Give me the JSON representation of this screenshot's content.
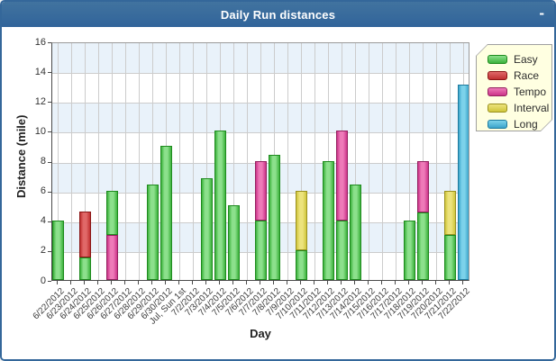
{
  "window": {
    "title": "Daily Run distances",
    "minimize_label": "-"
  },
  "colors": {
    "titlebar": "#34679a",
    "window_border": "#34679a",
    "plot_band": "#e9f2fa",
    "gridline": "#cccccc",
    "legend_bg": "#ffffe1",
    "legend_border": "#9f9f9f"
  },
  "chart_data": {
    "type": "bar",
    "title": "Daily Run distances",
    "xlabel": "Day",
    "ylabel": "Distance (mile)",
    "ylim": [
      0,
      16
    ],
    "yticks": [
      0,
      2,
      4,
      6,
      8,
      10,
      12,
      14,
      16
    ],
    "grid": true,
    "legend_position": "top-right",
    "categories": [
      "6/22/2012",
      "6/23/2012",
      "6/24/2012",
      "6/25/2012",
      "6/26/2012",
      "6/27/2012",
      "6/28/2012",
      "6/29/2012",
      "6/30/2012",
      "Jul, Sun 1st",
      "7/2/2012",
      "7/3/2012",
      "7/4/2012",
      "7/5/2012",
      "7/6/2012",
      "7/7/2012",
      "7/8/2012",
      "7/9/2012",
      "7/10/2012",
      "7/11/2012",
      "7/12/2012",
      "7/13/2012",
      "7/14/2012",
      "7/15/2012",
      "7/16/2012",
      "7/17/2012",
      "7/18/2012",
      "7/19/2012",
      "7/20/2012",
      "7/21/2012",
      "7/22/2012"
    ],
    "legend": [
      {
        "label": "Easy",
        "fill_light": "#8ce08c",
        "fill_dark": "#3cb23c",
        "border": "#1e8a1e"
      },
      {
        "label": "Race",
        "fill_light": "#e06868",
        "fill_dark": "#c03030",
        "border": "#8a1616"
      },
      {
        "label": "Tempo",
        "fill_light": "#ee7ab8",
        "fill_dark": "#cc3389",
        "border": "#93215f"
      },
      {
        "label": "Interval",
        "fill_light": "#ece37c",
        "fill_dark": "#d0c63c",
        "border": "#99901f"
      },
      {
        "label": "Long",
        "fill_light": "#7cd2ea",
        "fill_dark": "#3ba4ca",
        "border": "#1d7a9e"
      }
    ],
    "bars": [
      {
        "category": "6/22/2012",
        "segments": [
          {
            "series": "Easy",
            "from": 0,
            "to": 4.0
          }
        ]
      },
      {
        "category": "6/24/2012",
        "segments": [
          {
            "series": "Easy",
            "from": 0,
            "to": 1.5
          },
          {
            "series": "Race",
            "from": 1.5,
            "to": 4.6
          }
        ]
      },
      {
        "category": "6/26/2012",
        "segments": [
          {
            "series": "Tempo",
            "from": 0,
            "to": 3.0
          },
          {
            "series": "Easy",
            "from": 3.0,
            "to": 6.0
          }
        ]
      },
      {
        "category": "6/29/2012",
        "segments": [
          {
            "series": "Easy",
            "from": 0,
            "to": 6.4
          }
        ]
      },
      {
        "category": "6/30/2012",
        "segments": [
          {
            "series": "Easy",
            "from": 0,
            "to": 9.0
          }
        ]
      },
      {
        "category": "7/3/2012",
        "segments": [
          {
            "series": "Easy",
            "from": 0,
            "to": 6.8
          }
        ]
      },
      {
        "category": "7/4/2012",
        "segments": [
          {
            "series": "Easy",
            "from": 0,
            "to": 10.0
          }
        ]
      },
      {
        "category": "7/5/2012",
        "segments": [
          {
            "series": "Easy",
            "from": 0,
            "to": 5.0
          }
        ]
      },
      {
        "category": "7/7/2012",
        "segments": [
          {
            "series": "Easy",
            "from": 0,
            "to": 4.0
          },
          {
            "series": "Tempo",
            "from": 4.0,
            "to": 8.0
          }
        ]
      },
      {
        "category": "7/8/2012",
        "segments": [
          {
            "series": "Easy",
            "from": 0,
            "to": 8.4
          }
        ]
      },
      {
        "category": "7/10/2012",
        "segments": [
          {
            "series": "Easy",
            "from": 0,
            "to": 2.0
          },
          {
            "series": "Interval",
            "from": 2.0,
            "to": 6.0
          }
        ]
      },
      {
        "category": "7/12/2012",
        "segments": [
          {
            "series": "Easy",
            "from": 0,
            "to": 8.0
          }
        ]
      },
      {
        "category": "7/13/2012",
        "segments": [
          {
            "series": "Easy",
            "from": 0,
            "to": 4.0
          },
          {
            "series": "Tempo",
            "from": 4.0,
            "to": 10.0
          }
        ]
      },
      {
        "category": "7/14/2012",
        "segments": [
          {
            "series": "Easy",
            "from": 0,
            "to": 6.4
          }
        ]
      },
      {
        "category": "7/18/2012",
        "segments": [
          {
            "series": "Easy",
            "from": 0,
            "to": 4.0
          }
        ]
      },
      {
        "category": "7/19/2012",
        "segments": [
          {
            "series": "Easy",
            "from": 0,
            "to": 4.5
          },
          {
            "series": "Tempo",
            "from": 4.5,
            "to": 8.0
          }
        ]
      },
      {
        "category": "7/21/2012",
        "segments": [
          {
            "series": "Easy",
            "from": 0,
            "to": 3.0
          },
          {
            "series": "Interval",
            "from": 3.0,
            "to": 6.0
          }
        ]
      },
      {
        "category": "7/22/2012",
        "segments": [
          {
            "series": "Long",
            "from": 0,
            "to": 13.1
          }
        ]
      }
    ]
  }
}
